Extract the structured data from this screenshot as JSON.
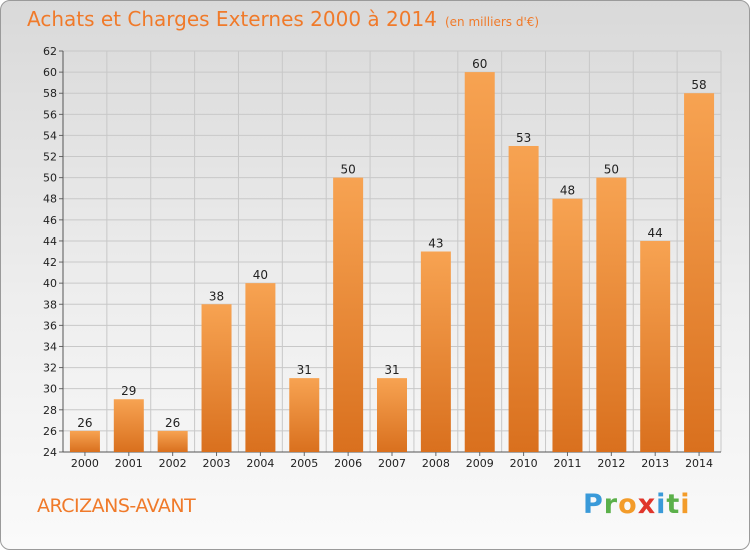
{
  "title": "Achats et Charges Externes 2000 à 2014",
  "unit": "(en milliers d'€)",
  "commune": "ARCIZANS-AVANT",
  "logo": {
    "letters": [
      "P",
      "r",
      "o",
      "x",
      "i",
      "t",
      "i"
    ],
    "colors": [
      "#3a9ad9",
      "#5bb04a",
      "#f39c2a",
      "#e0352b",
      "#3a9ad9",
      "#5bb04a",
      "#f39c2a"
    ]
  },
  "colors": {
    "bar_light": "#f7a352",
    "bar_dark": "#d9701e",
    "title": "#f07a2a",
    "grid": "#c8c8c8"
  },
  "chart_data": {
    "type": "bar",
    "categories": [
      "2000",
      "2001",
      "2002",
      "2003",
      "2004",
      "2005",
      "2006",
      "2007",
      "2008",
      "2009",
      "2010",
      "2011",
      "2012",
      "2013",
      "2014"
    ],
    "values": [
      26,
      29,
      26,
      38,
      40,
      31,
      50,
      31,
      43,
      60,
      53,
      48,
      50,
      44,
      58
    ],
    "ylim": [
      24,
      62
    ],
    "yticks": [
      24,
      26,
      28,
      30,
      32,
      34,
      36,
      38,
      40,
      42,
      44,
      46,
      48,
      50,
      52,
      54,
      56,
      58,
      60,
      62
    ],
    "grid": true
  }
}
